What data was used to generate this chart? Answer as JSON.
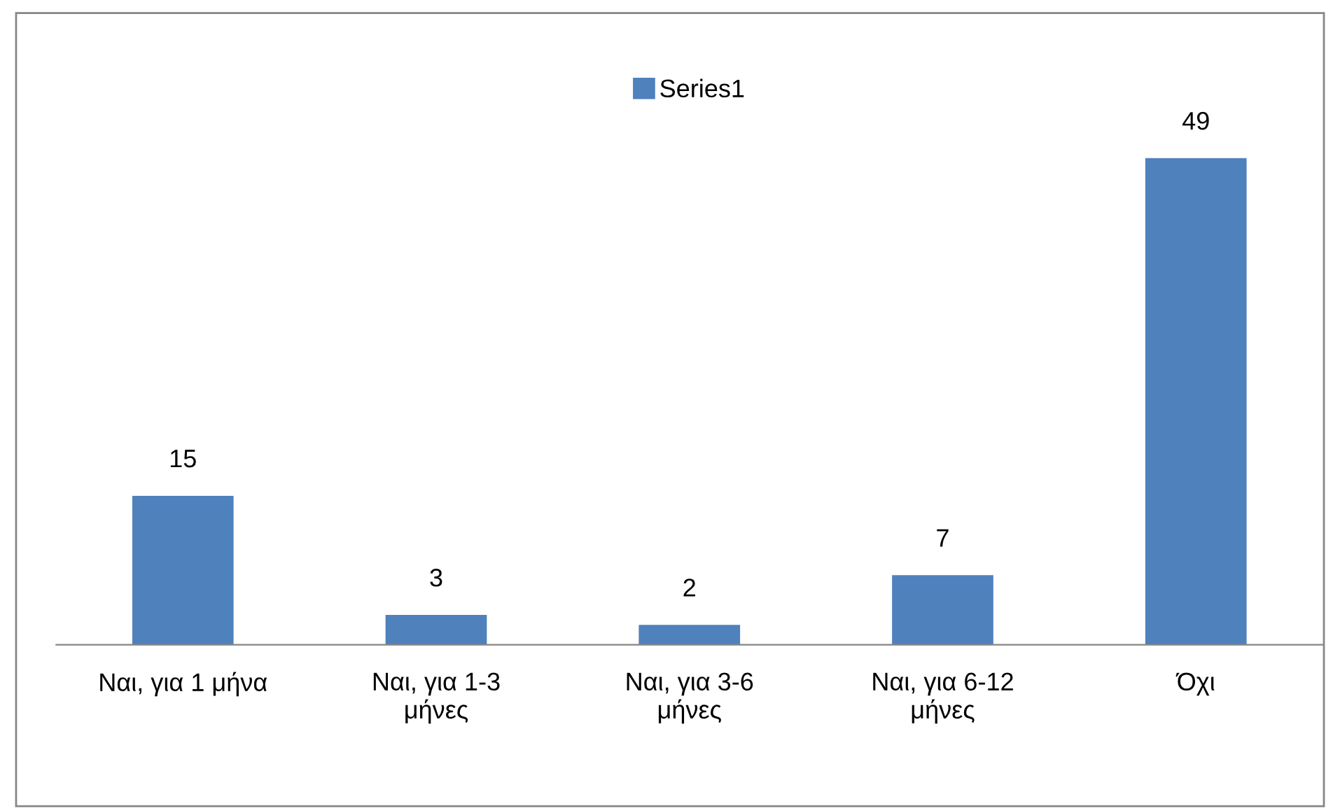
{
  "chart_data": {
    "type": "bar",
    "categories": [
      "Ναι, για 1 μήνα",
      "Ναι, για 1-3\nμήνες",
      "Ναι, για 3-6\nμήνες",
      "Ναι, για 6-12\nμήνες",
      "Όχι"
    ],
    "series": [
      {
        "name": "Series1",
        "color": "#4f81bd",
        "values": [
          15,
          3,
          2,
          7,
          49
        ]
      }
    ],
    "data_labels": true,
    "legend": "top",
    "grid": false
  }
}
